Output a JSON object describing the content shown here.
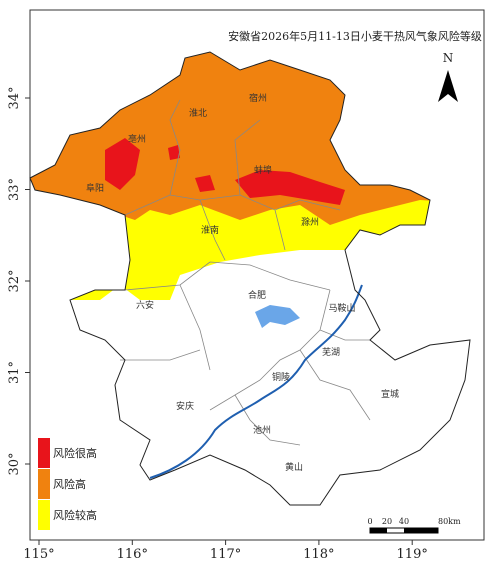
{
  "map": {
    "title": "安徽省2026年5月11-13日小麦干热风气象风险等级",
    "north": "N",
    "xticks": [
      {
        "value": 115,
        "label": "115°"
      },
      {
        "value": 116,
        "label": "116°"
      },
      {
        "value": 117,
        "label": "117°"
      },
      {
        "value": 118,
        "label": "118°"
      },
      {
        "value": 119,
        "label": "119°"
      }
    ],
    "yticks": [
      {
        "value": 30,
        "label": "30°"
      },
      {
        "value": 31,
        "label": "31°"
      },
      {
        "value": 32,
        "label": "32°"
      },
      {
        "value": 33,
        "label": "33°"
      },
      {
        "value": 34,
        "label": "34°"
      }
    ],
    "legend": [
      {
        "label": "风险很高",
        "color": "#e8141b"
      },
      {
        "label": "风险高",
        "color": "#f0820f"
      },
      {
        "label": "风险较高",
        "color": "#ffff00"
      }
    ],
    "scale": [
      "0",
      "20",
      "40",
      "80km"
    ],
    "cities": [
      "宿州",
      "淮北",
      "亳州",
      "阜阳",
      "蚌埠",
      "淮南",
      "滁州",
      "六安",
      "合肥",
      "马鞍山",
      "芜湖",
      "铜陵",
      "宣城",
      "安庆",
      "池州",
      "黄山"
    ]
  }
}
